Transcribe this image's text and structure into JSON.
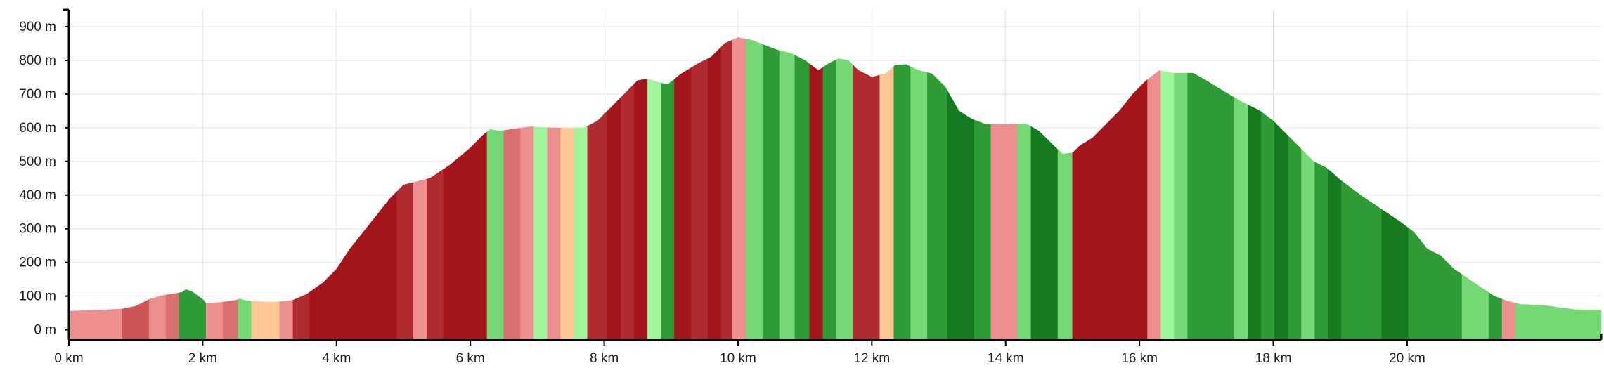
{
  "chart_data": {
    "type": "area",
    "title": "",
    "xlabel": "",
    "ylabel": "",
    "xlim": [
      0,
      22.9
    ],
    "ylim": [
      -30,
      950
    ],
    "x_unit": "km",
    "y_unit": "m",
    "grid": true,
    "x_ticks": [
      {
        "value": 0,
        "label": "0 km"
      },
      {
        "value": 2,
        "label": "2 km"
      },
      {
        "value": 4,
        "label": "4 km"
      },
      {
        "value": 6,
        "label": "6 km"
      },
      {
        "value": 8,
        "label": "8 km"
      },
      {
        "value": 10,
        "label": "10 km"
      },
      {
        "value": 12,
        "label": "12 km"
      },
      {
        "value": 14,
        "label": "14 km"
      },
      {
        "value": 16,
        "label": "16 km"
      },
      {
        "value": 18,
        "label": "18 km"
      },
      {
        "value": 20,
        "label": "20 km"
      }
    ],
    "y_ticks": [
      {
        "value": 0,
        "label": "0 m"
      },
      {
        "value": 100,
        "label": "100 m"
      },
      {
        "value": 200,
        "label": "200 m"
      },
      {
        "value": 300,
        "label": "300 m"
      },
      {
        "value": 400,
        "label": "400 m"
      },
      {
        "value": 500,
        "label": "500 m"
      },
      {
        "value": 600,
        "label": "600 m"
      },
      {
        "value": 700,
        "label": "700 m"
      },
      {
        "value": 800,
        "label": "800 m"
      },
      {
        "value": 900,
        "label": "900 m"
      }
    ],
    "profile": [
      [
        0,
        55
      ],
      [
        0.4,
        58
      ],
      [
        0.8,
        62
      ],
      [
        1.0,
        70
      ],
      [
        1.2,
        90
      ],
      [
        1.4,
        102
      ],
      [
        1.6,
        108
      ],
      [
        1.7,
        112
      ],
      [
        1.75,
        120
      ],
      [
        1.85,
        112
      ],
      [
        2.0,
        90
      ],
      [
        2.05,
        78
      ],
      [
        2.3,
        82
      ],
      [
        2.5,
        88
      ],
      [
        2.55,
        92
      ],
      [
        2.65,
        86
      ],
      [
        2.8,
        84
      ],
      [
        3.0,
        82
      ],
      [
        3.2,
        84
      ],
      [
        3.35,
        88
      ],
      [
        3.55,
        105
      ],
      [
        3.8,
        140
      ],
      [
        4.0,
        180
      ],
      [
        4.2,
        240
      ],
      [
        4.4,
        290
      ],
      [
        4.6,
        340
      ],
      [
        4.8,
        390
      ],
      [
        5.0,
        430
      ],
      [
        5.2,
        440
      ],
      [
        5.4,
        450
      ],
      [
        5.7,
        490
      ],
      [
        6.0,
        540
      ],
      [
        6.2,
        580
      ],
      [
        6.3,
        595
      ],
      [
        6.45,
        590
      ],
      [
        6.6,
        595
      ],
      [
        6.9,
        603
      ],
      [
        7.2,
        600
      ],
      [
        7.5,
        598
      ],
      [
        7.7,
        600
      ],
      [
        7.9,
        620
      ],
      [
        8.1,
        660
      ],
      [
        8.3,
        700
      ],
      [
        8.5,
        740
      ],
      [
        8.65,
        745
      ],
      [
        8.8,
        735
      ],
      [
        8.95,
        728
      ],
      [
        9.15,
        760
      ],
      [
        9.4,
        790
      ],
      [
        9.6,
        810
      ],
      [
        9.8,
        850
      ],
      [
        10.0,
        868
      ],
      [
        10.2,
        860
      ],
      [
        10.4,
        845
      ],
      [
        10.6,
        830
      ],
      [
        10.8,
        820
      ],
      [
        11.0,
        800
      ],
      [
        11.2,
        770
      ],
      [
        11.35,
        790
      ],
      [
        11.5,
        805
      ],
      [
        11.65,
        800
      ],
      [
        11.8,
        770
      ],
      [
        12.0,
        750
      ],
      [
        12.2,
        760
      ],
      [
        12.35,
        785
      ],
      [
        12.5,
        788
      ],
      [
        12.7,
        770
      ],
      [
        12.9,
        760
      ],
      [
        13.1,
        720
      ],
      [
        13.3,
        650
      ],
      [
        13.5,
        625
      ],
      [
        13.7,
        610
      ],
      [
        14.0,
        610
      ],
      [
        14.3,
        612
      ],
      [
        14.5,
        590
      ],
      [
        14.7,
        550
      ],
      [
        14.85,
        522
      ],
      [
        15.0,
        525
      ],
      [
        15.1,
        545
      ],
      [
        15.3,
        570
      ],
      [
        15.5,
        610
      ],
      [
        15.7,
        650
      ],
      [
        15.9,
        700
      ],
      [
        16.1,
        740
      ],
      [
        16.3,
        770
      ],
      [
        16.5,
        762
      ],
      [
        16.8,
        762
      ],
      [
        17.0,
        740
      ],
      [
        17.2,
        715
      ],
      [
        17.5,
        680
      ],
      [
        17.8,
        650
      ],
      [
        18.0,
        620
      ],
      [
        18.2,
        580
      ],
      [
        18.4,
        540
      ],
      [
        18.6,
        500
      ],
      [
        18.8,
        480
      ],
      [
        19.0,
        445
      ],
      [
        19.3,
        400
      ],
      [
        19.6,
        360
      ],
      [
        19.9,
        320
      ],
      [
        20.1,
        290
      ],
      [
        20.3,
        240
      ],
      [
        20.5,
        220
      ],
      [
        20.7,
        180
      ],
      [
        21.0,
        140
      ],
      [
        21.3,
        100
      ],
      [
        21.5,
        85
      ],
      [
        21.7,
        75
      ],
      [
        22.0,
        73
      ],
      [
        22.15,
        70
      ],
      [
        22.3,
        65
      ],
      [
        22.5,
        60
      ],
      [
        22.9,
        58
      ]
    ],
    "segments": [
      {
        "x0": 0.0,
        "x1": 0.8,
        "color": "#ee8f8f"
      },
      {
        "x0": 0.8,
        "x1": 1.2,
        "color": "#cc5555"
      },
      {
        "x0": 1.2,
        "x1": 1.45,
        "color": "#ee8f8f"
      },
      {
        "x0": 1.45,
        "x1": 1.65,
        "color": "#d96f6f"
      },
      {
        "x0": 1.65,
        "x1": 2.05,
        "color": "#2e9b36"
      },
      {
        "x0": 2.05,
        "x1": 2.3,
        "color": "#ee8f8f"
      },
      {
        "x0": 2.3,
        "x1": 2.53,
        "color": "#d96f6f"
      },
      {
        "x0": 2.53,
        "x1": 2.73,
        "color": "#74d874"
      },
      {
        "x0": 2.73,
        "x1": 3.15,
        "color": "#fdc793"
      },
      {
        "x0": 3.15,
        "x1": 3.35,
        "color": "#ee8f8f"
      },
      {
        "x0": 3.35,
        "x1": 3.6,
        "color": "#b02b30"
      },
      {
        "x0": 3.6,
        "x1": 4.9,
        "color": "#a3151a"
      },
      {
        "x0": 4.9,
        "x1": 5.15,
        "color": "#b02b30"
      },
      {
        "x0": 5.15,
        "x1": 5.35,
        "color": "#ee8f8f"
      },
      {
        "x0": 5.35,
        "x1": 5.6,
        "color": "#b02b30"
      },
      {
        "x0": 5.6,
        "x1": 6.25,
        "color": "#a3151a"
      },
      {
        "x0": 6.25,
        "x1": 6.5,
        "color": "#74d874"
      },
      {
        "x0": 6.5,
        "x1": 6.75,
        "color": "#d96f6f"
      },
      {
        "x0": 6.75,
        "x1": 6.95,
        "color": "#ee8f8f"
      },
      {
        "x0": 6.95,
        "x1": 7.15,
        "color": "#9ef59a"
      },
      {
        "x0": 7.15,
        "x1": 7.35,
        "color": "#ee8f8f"
      },
      {
        "x0": 7.35,
        "x1": 7.55,
        "color": "#fdc793"
      },
      {
        "x0": 7.55,
        "x1": 7.75,
        "color": "#9ef59a"
      },
      {
        "x0": 7.75,
        "x1": 8.05,
        "color": "#b02b30"
      },
      {
        "x0": 8.05,
        "x1": 8.25,
        "color": "#a3151a"
      },
      {
        "x0": 8.25,
        "x1": 8.45,
        "color": "#b02b30"
      },
      {
        "x0": 8.45,
        "x1": 8.65,
        "color": "#a3151a"
      },
      {
        "x0": 8.65,
        "x1": 8.85,
        "color": "#9ef59a"
      },
      {
        "x0": 8.85,
        "x1": 9.05,
        "color": "#2e9b36"
      },
      {
        "x0": 9.05,
        "x1": 9.3,
        "color": "#a3151a"
      },
      {
        "x0": 9.3,
        "x1": 9.55,
        "color": "#b02b30"
      },
      {
        "x0": 9.55,
        "x1": 9.75,
        "color": "#a3151a"
      },
      {
        "x0": 9.75,
        "x1": 9.92,
        "color": "#b02b30"
      },
      {
        "x0": 9.92,
        "x1": 10.12,
        "color": "#ee8f8f"
      },
      {
        "x0": 10.12,
        "x1": 10.37,
        "color": "#74d874"
      },
      {
        "x0": 10.37,
        "x1": 10.62,
        "color": "#2e9b36"
      },
      {
        "x0": 10.62,
        "x1": 10.85,
        "color": "#74d874"
      },
      {
        "x0": 10.85,
        "x1": 11.07,
        "color": "#2e9b36"
      },
      {
        "x0": 11.07,
        "x1": 11.27,
        "color": "#a3151a"
      },
      {
        "x0": 11.27,
        "x1": 11.47,
        "color": "#2e9b36"
      },
      {
        "x0": 11.47,
        "x1": 11.72,
        "color": "#74d874"
      },
      {
        "x0": 11.72,
        "x1": 12.12,
        "color": "#b02b30"
      },
      {
        "x0": 12.12,
        "x1": 12.33,
        "color": "#fdc793"
      },
      {
        "x0": 12.33,
        "x1": 12.58,
        "color": "#2e9b36"
      },
      {
        "x0": 12.58,
        "x1": 12.83,
        "color": "#74d874"
      },
      {
        "x0": 12.83,
        "x1": 13.13,
        "color": "#2e9b36"
      },
      {
        "x0": 13.13,
        "x1": 13.53,
        "color": "#157a20"
      },
      {
        "x0": 13.53,
        "x1": 13.78,
        "color": "#2e9b36"
      },
      {
        "x0": 13.78,
        "x1": 14.18,
        "color": "#ee8f8f"
      },
      {
        "x0": 14.18,
        "x1": 14.38,
        "color": "#74d874"
      },
      {
        "x0": 14.38,
        "x1": 14.78,
        "color": "#157a20"
      },
      {
        "x0": 14.78,
        "x1": 15.0,
        "color": "#74d874"
      },
      {
        "x0": 15.0,
        "x1": 16.12,
        "color": "#a3151a"
      },
      {
        "x0": 16.12,
        "x1": 16.32,
        "color": "#ee8f8f"
      },
      {
        "x0": 16.32,
        "x1": 16.52,
        "color": "#9ef59a"
      },
      {
        "x0": 16.52,
        "x1": 16.72,
        "color": "#74d874"
      },
      {
        "x0": 16.72,
        "x1": 17.42,
        "color": "#2e9b36"
      },
      {
        "x0": 17.42,
        "x1": 17.62,
        "color": "#74d874"
      },
      {
        "x0": 17.62,
        "x1": 17.82,
        "color": "#157a20"
      },
      {
        "x0": 17.82,
        "x1": 18.02,
        "color": "#2e9b36"
      },
      {
        "x0": 18.02,
        "x1": 18.22,
        "color": "#157a20"
      },
      {
        "x0": 18.22,
        "x1": 18.42,
        "color": "#2e9b36"
      },
      {
        "x0": 18.42,
        "x1": 18.62,
        "color": "#74d874"
      },
      {
        "x0": 18.62,
        "x1": 18.82,
        "color": "#2e9b36"
      },
      {
        "x0": 18.82,
        "x1": 19.02,
        "color": "#157a20"
      },
      {
        "x0": 19.02,
        "x1": 19.62,
        "color": "#2e9b36"
      },
      {
        "x0": 19.62,
        "x1": 20.02,
        "color": "#157a20"
      },
      {
        "x0": 20.02,
        "x1": 20.82,
        "color": "#2e9b36"
      },
      {
        "x0": 20.82,
        "x1": 21.22,
        "color": "#74d874"
      },
      {
        "x0": 21.22,
        "x1": 21.42,
        "color": "#2e9b36"
      },
      {
        "x0": 21.42,
        "x1": 21.62,
        "color": "#ee8f8f"
      },
      {
        "x0": 21.62,
        "x1": 22.9,
        "color": "#74d874"
      }
    ]
  }
}
